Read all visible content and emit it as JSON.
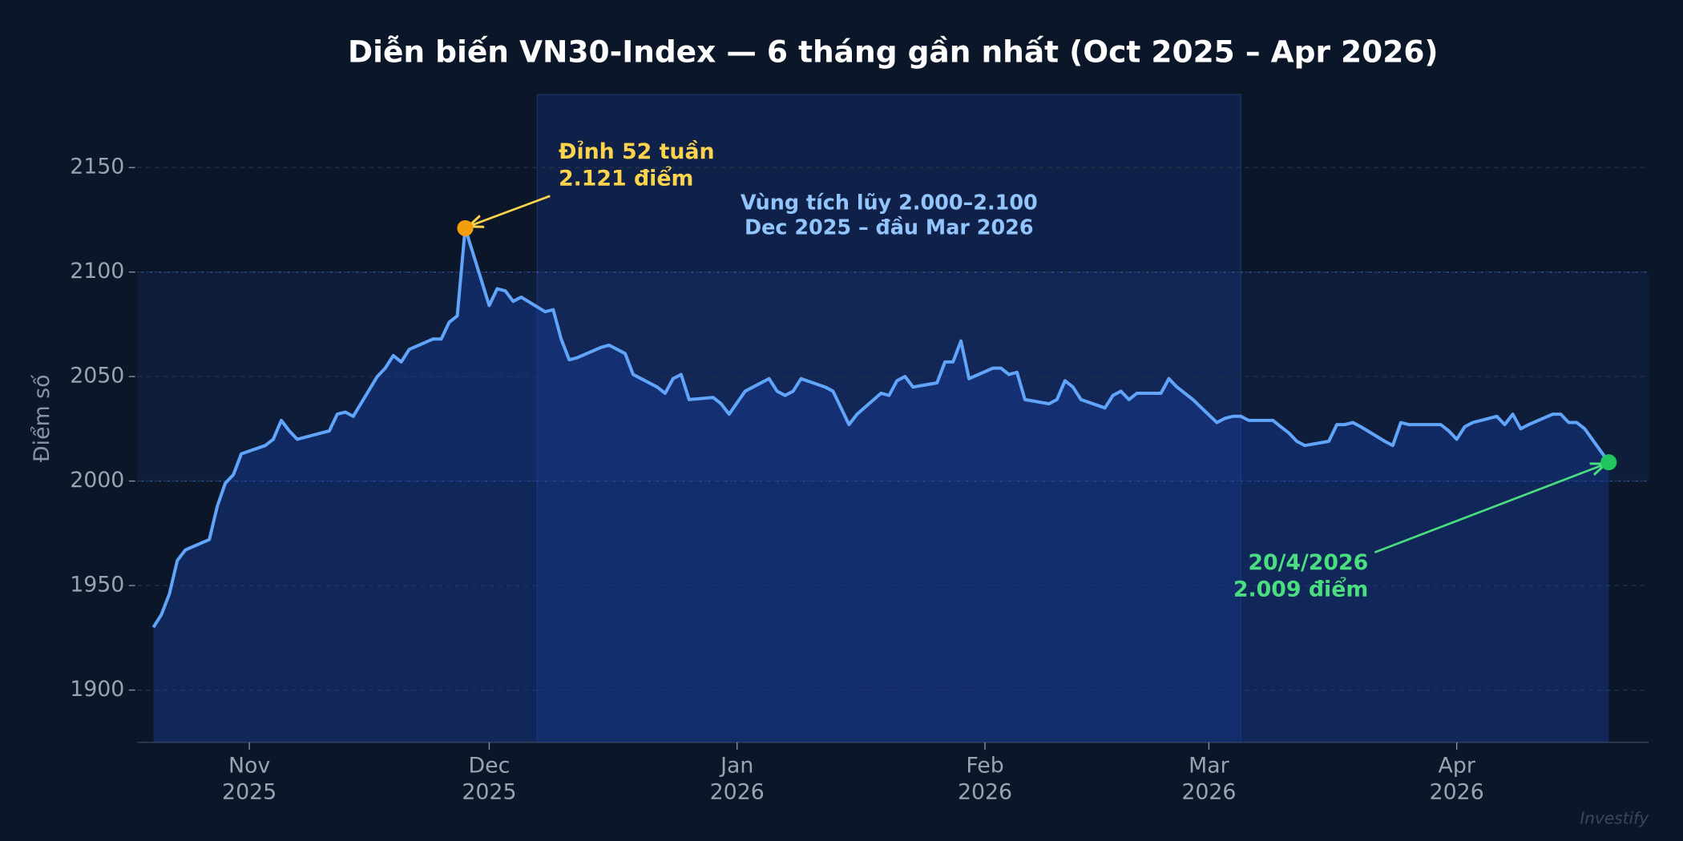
{
  "chart_data": {
    "type": "line",
    "title": "Diễn biến VN30-Index — 6 tháng gần nhất (Oct 2025 – Apr 2026)",
    "ylabel": "Điểm số",
    "watermark": "Investify",
    "color": "#60a5fa",
    "grid": true,
    "xlim": [
      "2025-10-18",
      "2026-04-25"
    ],
    "ylim": [
      1875,
      2185
    ],
    "yticks": [
      1900,
      1950,
      2000,
      2050,
      2100,
      2150
    ],
    "xticks": [
      {
        "value": "2025-11-01",
        "label": [
          "Nov",
          "2025"
        ]
      },
      {
        "value": "2025-12-01",
        "label": [
          "Dec",
          "2025"
        ]
      },
      {
        "value": "2026-01-01",
        "label": [
          "Jan",
          "2026"
        ]
      },
      {
        "value": "2026-02-01",
        "label": [
          "Feb",
          "2026"
        ]
      },
      {
        "value": "2026-03-01",
        "label": [
          "Mar",
          "2026"
        ]
      },
      {
        "value": "2026-04-01",
        "label": [
          "Apr",
          "2026"
        ]
      }
    ],
    "band": [
      2000,
      2100
    ],
    "highlight": {
      "x": [
        "2025-12-07",
        "2026-03-05"
      ],
      "label": [
        "Vùng tích lũy 2.000–2.100",
        "Dec 2025 – đầu Mar 2026"
      ],
      "color": "#93c5fd"
    },
    "annotations": [
      {
        "at": "max",
        "text": [
          "Đỉnh 52 tuần",
          "2.121 điểm"
        ],
        "color": "#fcd34d",
        "marker_color": "#f59e0b"
      },
      {
        "at": "last",
        "text": [
          "20/4/2026",
          "2.009 điểm"
        ],
        "color": "#4ade80",
        "marker_color": "#22c55e"
      }
    ],
    "x": [
      "2025-10-20",
      "2025-10-21",
      "2025-10-22",
      "2025-10-23",
      "2025-10-24",
      "2025-10-27",
      "2025-10-28",
      "2025-10-29",
      "2025-10-30",
      "2025-10-31",
      "2025-11-03",
      "2025-11-04",
      "2025-11-05",
      "2025-11-06",
      "2025-11-07",
      "2025-11-10",
      "2025-11-11",
      "2025-11-12",
      "2025-11-13",
      "2025-11-14",
      "2025-11-17",
      "2025-11-18",
      "2025-11-19",
      "2025-11-20",
      "2025-11-21",
      "2025-11-24",
      "2025-11-25",
      "2025-11-26",
      "2025-11-27",
      "2025-11-28",
      "2025-12-01",
      "2025-12-02",
      "2025-12-03",
      "2025-12-04",
      "2025-12-05",
      "2025-12-08",
      "2025-12-09",
      "2025-12-10",
      "2025-12-11",
      "2025-12-12",
      "2025-12-15",
      "2025-12-16",
      "2025-12-17",
      "2025-12-18",
      "2025-12-19",
      "2025-12-22",
      "2025-12-23",
      "2025-12-24",
      "2025-12-25",
      "2025-12-26",
      "2025-12-29",
      "2025-12-30",
      "2025-12-31",
      "2026-01-02",
      "2026-01-05",
      "2026-01-06",
      "2026-01-07",
      "2026-01-08",
      "2026-01-09",
      "2026-01-12",
      "2026-01-13",
      "2026-01-14",
      "2026-01-15",
      "2026-01-16",
      "2026-01-19",
      "2026-01-20",
      "2026-01-21",
      "2026-01-22",
      "2026-01-23",
      "2026-01-26",
      "2026-01-27",
      "2026-01-28",
      "2026-01-29",
      "2026-01-30",
      "2026-02-02",
      "2026-02-03",
      "2026-02-04",
      "2026-02-05",
      "2026-02-06",
      "2026-02-09",
      "2026-02-10",
      "2026-02-11",
      "2026-02-12",
      "2026-02-13",
      "2026-02-16",
      "2026-02-17",
      "2026-02-18",
      "2026-02-19",
      "2026-02-20",
      "2026-02-23",
      "2026-02-24",
      "2026-02-25",
      "2026-02-26",
      "2026-02-27",
      "2026-03-02",
      "2026-03-03",
      "2026-03-04",
      "2026-03-05",
      "2026-03-06",
      "2026-03-09",
      "2026-03-10",
      "2026-03-11",
      "2026-03-12",
      "2026-03-13",
      "2026-03-16",
      "2026-03-17",
      "2026-03-18",
      "2026-03-19",
      "2026-03-20",
      "2026-03-23",
      "2026-03-24",
      "2026-03-25",
      "2026-03-26",
      "2026-03-27",
      "2026-03-30",
      "2026-03-31",
      "2026-04-01",
      "2026-04-02",
      "2026-04-03",
      "2026-04-06",
      "2026-04-07",
      "2026-04-08",
      "2026-04-09",
      "2026-04-10",
      "2026-04-13",
      "2026-04-14",
      "2026-04-15",
      "2026-04-16",
      "2026-04-17",
      "2026-04-20"
    ],
    "values": [
      1930,
      1936,
      1946,
      1962,
      1967,
      1972,
      1988,
      1999,
      2003,
      2013,
      2017,
      2020,
      2029,
      2024,
      2020,
      2023,
      2024,
      2032,
      2033,
      2031,
      2050,
      2054,
      2060,
      2057,
      2063,
      2068,
      2068,
      2076,
      2079,
      2121,
      2084,
      2092,
      2091,
      2086,
      2088,
      2081,
      2082,
      2068,
      2058,
      2059,
      2064,
      2065,
      2063,
      2061,
      2051,
      2045,
      2042,
      2049,
      2051,
      2039,
      2040,
      2037,
      2032,
      2043,
      2049,
      2043,
      2041,
      2043,
      2049,
      2045,
      2043,
      2035,
      2027,
      2032,
      2042,
      2041,
      2048,
      2050,
      2045,
      2047,
      2057,
      2057,
      2067,
      2049,
      2054,
      2054,
      2051,
      2052,
      2039,
      2037,
      2039,
      2048,
      2045,
      2039,
      2035,
      2041,
      2043,
      2039,
      2042,
      2042,
      2049,
      2045,
      2042,
      2039,
      2028,
      2030,
      2031,
      2031,
      2029,
      2029,
      2026,
      2023,
      2019,
      2017,
      2019,
      2027,
      2027,
      2028,
      2026,
      2019,
      2017,
      2028,
      2027,
      2027,
      2027,
      2024,
      2020,
      2026,
      2028,
      2031,
      2027,
      2032,
      2025,
      2027,
      2032,
      2032,
      2028,
      2028,
      2025,
      2009
    ]
  }
}
